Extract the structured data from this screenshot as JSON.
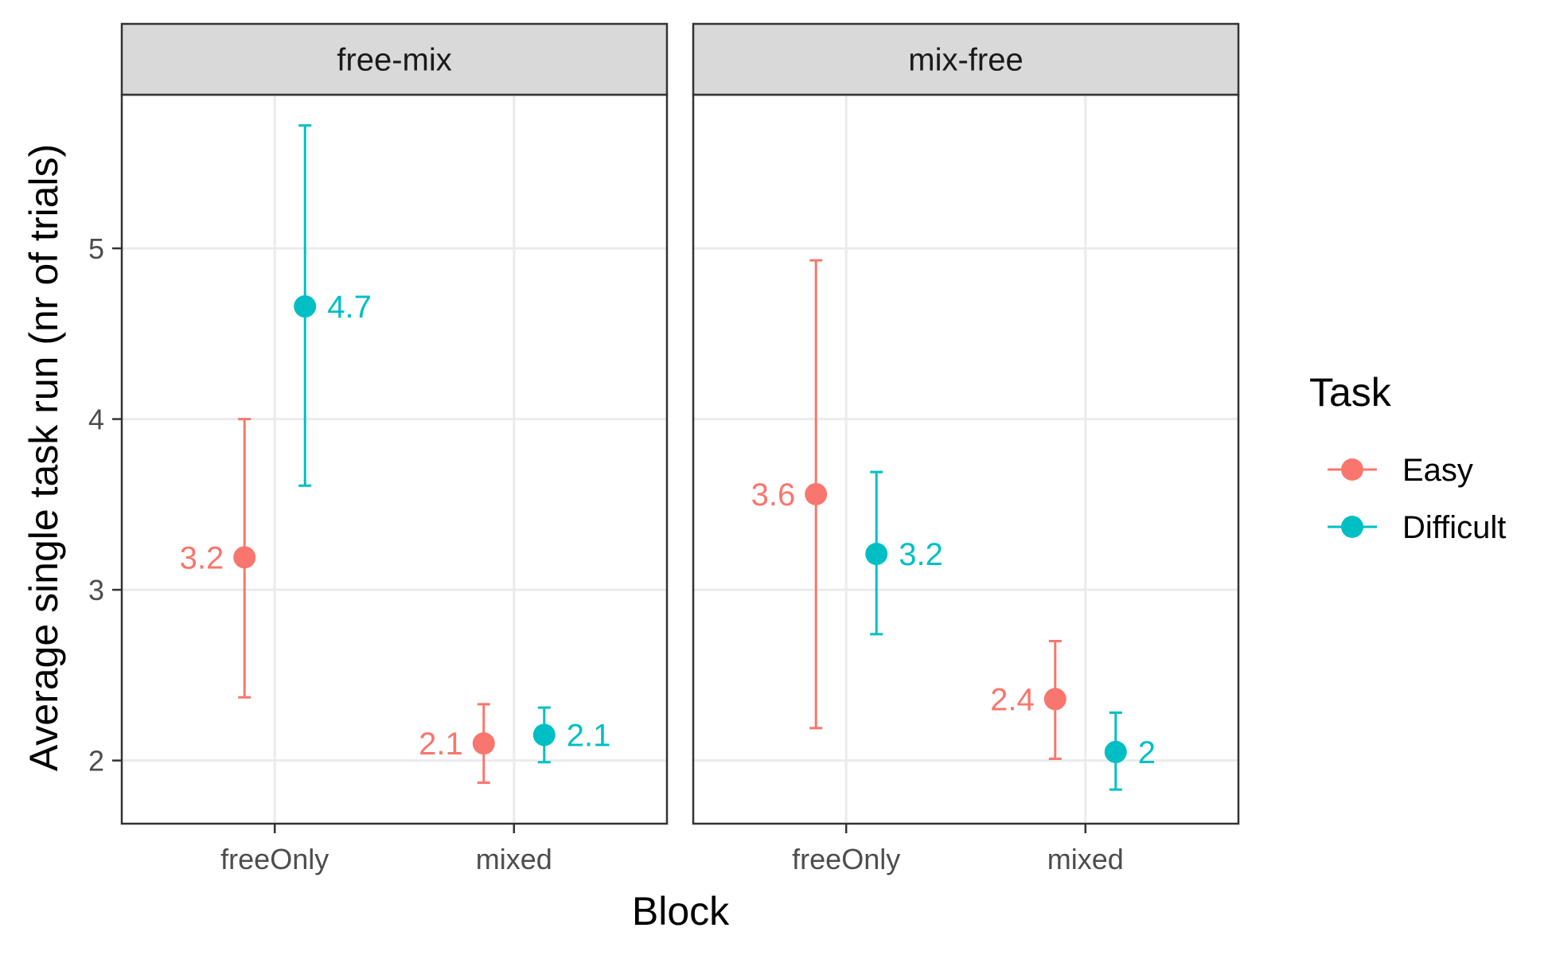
{
  "chart_data": {
    "type": "scatter",
    "subtype": "point-errorbar-faceted",
    "facets": [
      "free-mix",
      "mix-free"
    ],
    "categories": [
      "freeOnly",
      "mixed"
    ],
    "xlabel": "Block",
    "ylabel": "Average single task run (nr of trials)",
    "ylim": [
      1.63,
      5.9
    ],
    "yticks": [
      2,
      3,
      4,
      5
    ],
    "grid": true,
    "legend": {
      "title": "Task",
      "placement": "right",
      "entries": [
        "Easy",
        "Difficult"
      ]
    },
    "colors": {
      "Easy": "#F8766D",
      "Difficult": "#00BFC4"
    },
    "series": [
      {
        "name": "Easy",
        "points": [
          {
            "facet": "free-mix",
            "category": "freeOnly",
            "value": 3.19,
            "lower": 2.37,
            "upper": 4.0,
            "label": "3.2"
          },
          {
            "facet": "free-mix",
            "category": "mixed",
            "value": 2.1,
            "lower": 1.87,
            "upper": 2.33,
            "label": "2.1"
          },
          {
            "facet": "mix-free",
            "category": "freeOnly",
            "value": 3.56,
            "lower": 2.19,
            "upper": 4.93,
            "label": "3.6"
          },
          {
            "facet": "mix-free",
            "category": "mixed",
            "value": 2.36,
            "lower": 2.01,
            "upper": 2.7,
            "label": "2.4"
          }
        ]
      },
      {
        "name": "Difficult",
        "points": [
          {
            "facet": "free-mix",
            "category": "freeOnly",
            "value": 4.66,
            "lower": 3.61,
            "upper": 5.72,
            "label": "4.7"
          },
          {
            "facet": "free-mix",
            "category": "mixed",
            "value": 2.15,
            "lower": 1.99,
            "upper": 2.31,
            "label": "2.1"
          },
          {
            "facet": "mix-free",
            "category": "freeOnly",
            "value": 3.21,
            "lower": 2.74,
            "upper": 3.69,
            "label": "3.2"
          },
          {
            "facet": "mix-free",
            "category": "mixed",
            "value": 2.05,
            "lower": 1.83,
            "upper": 2.28,
            "label": "2"
          }
        ]
      }
    ]
  }
}
